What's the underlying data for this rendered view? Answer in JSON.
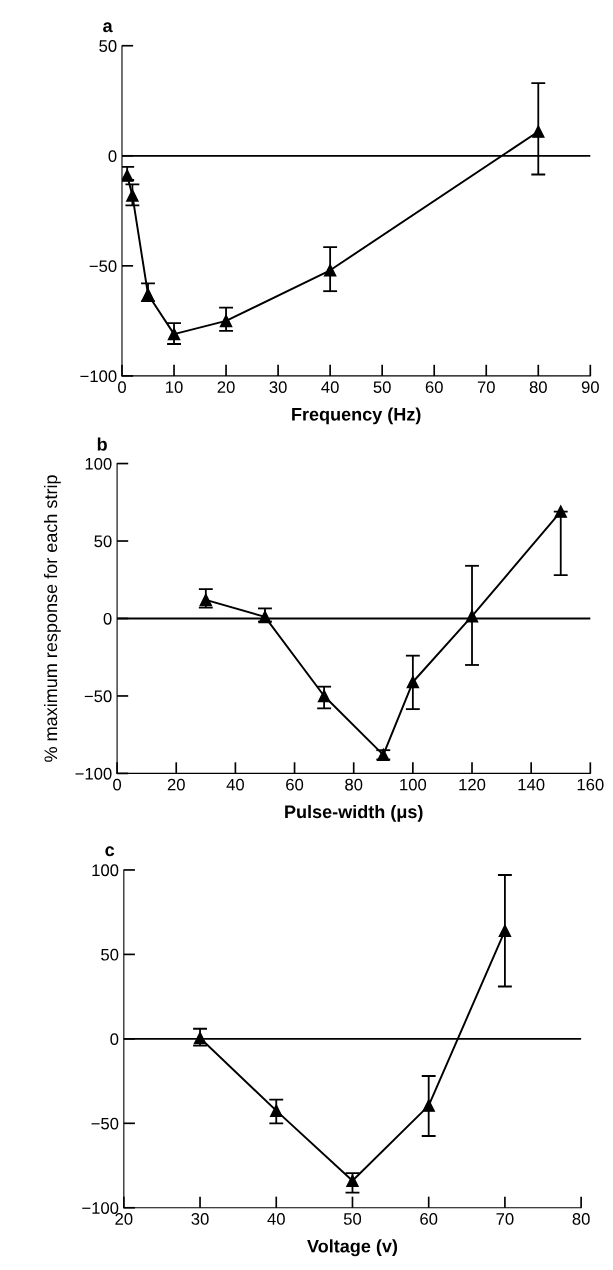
{
  "chart_data": [
    {
      "type": "line",
      "title": "a",
      "xlabel": "Frequency (Hz)",
      "xlim": [
        0,
        90
      ],
      "xticks": [
        0,
        10,
        20,
        30,
        40,
        50,
        60,
        70,
        80,
        90
      ],
      "ylim": [
        -100,
        50
      ],
      "yticks": [
        -100,
        -50,
        0,
        50
      ],
      "marker": "triangle",
      "line_style": "solid",
      "grid": false,
      "series": [
        {
          "color": "#000000",
          "x": [
            1,
            2,
            5,
            10,
            20,
            40,
            80
          ],
          "values": [
            -9,
            -18,
            -63,
            -81,
            -75,
            -52,
            11
          ],
          "errors": [
            [
              -11,
              -5
            ],
            [
              -22.5,
              -13
            ],
            [
              -66,
              -58
            ],
            [
              -85.5,
              -76
            ],
            [
              -79.5,
              -69
            ],
            [
              -61.5,
              -41.5
            ],
            [
              -8.5,
              33
            ]
          ]
        }
      ],
      "ref_lines": [
        {
          "axis": "y",
          "value": 0,
          "color": "#000000"
        }
      ]
    },
    {
      "type": "line",
      "title": "b",
      "xlabel": "Pulse-width (μs)",
      "ylabel": "% maximum response for each strip",
      "xlim": [
        0,
        160
      ],
      "xticks": [
        0,
        20,
        40,
        60,
        80,
        100,
        120,
        140,
        160
      ],
      "ylim": [
        -100,
        100
      ],
      "yticks": [
        -100,
        -50,
        0,
        50,
        100
      ],
      "marker": "triangle",
      "line_style": "solid",
      "grid": false,
      "series": [
        {
          "color": "#000000",
          "x": [
            30,
            50,
            70,
            90,
            100,
            120,
            150
          ],
          "values": [
            12,
            1,
            -50,
            -88,
            -41,
            1.5,
            69
          ],
          "errors": [
            [
              7,
              19
            ],
            [
              -2,
              6.5
            ],
            [
              -58,
              -44
            ],
            [
              -91,
              -85
            ],
            [
              -58.5,
              -24
            ],
            [
              -30,
              34
            ],
            [
              28,
              69
            ]
          ]
        }
      ],
      "ref_lines": [
        {
          "axis": "y",
          "value": 0,
          "color": "#000000"
        }
      ]
    },
    {
      "type": "line",
      "title": "c",
      "xlabel": "Voltage (v)",
      "xlim": [
        20,
        80
      ],
      "xticks": [
        20,
        30,
        40,
        50,
        60,
        70,
        80
      ],
      "ylim": [
        -100,
        100
      ],
      "yticks": [
        -100,
        -50,
        0,
        50,
        100
      ],
      "marker": "triangle",
      "line_style": "solid",
      "grid": false,
      "series": [
        {
          "color": "#000000",
          "x": [
            30,
            40,
            50,
            60,
            70
          ],
          "values": [
            0.5,
            -42.5,
            -84,
            -39.5,
            64
          ],
          "errors": [
            [
              -4,
              6
            ],
            [
              -50,
              -36
            ],
            [
              -91,
              -79.5
            ],
            [
              -57.5,
              -22
            ],
            [
              31,
              97
            ]
          ]
        }
      ],
      "ref_lines": [
        {
          "axis": "y",
          "value": 0,
          "color": "#000000"
        }
      ]
    }
  ]
}
